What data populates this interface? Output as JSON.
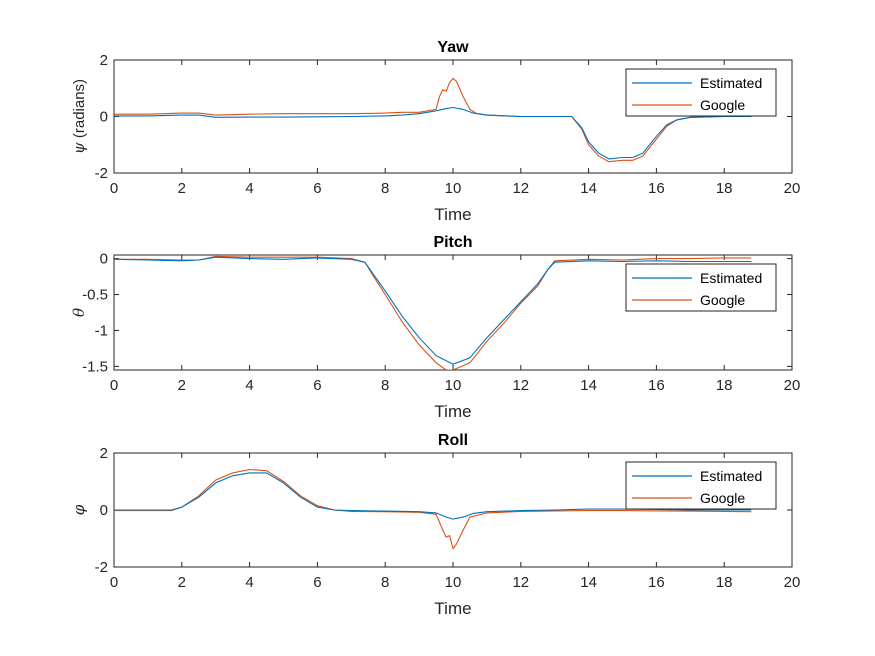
{
  "chart_data": [
    {
      "type": "line",
      "title": "Yaw",
      "xlabel": "Time",
      "ylabel_symbol": "ψ",
      "ylabel_text": " (radians)",
      "xlim": [
        0,
        20
      ],
      "ylim": [
        -2,
        2
      ],
      "xticks": [
        0,
        2,
        4,
        6,
        8,
        10,
        12,
        14,
        16,
        18,
        20
      ],
      "yticks": [
        -2,
        0,
        2
      ],
      "ytick_labels": [
        "-2",
        "0",
        "2"
      ],
      "legend": {
        "position": "top-right",
        "entries": [
          "Estimated",
          "Google"
        ]
      },
      "series": [
        {
          "name": "Estimated",
          "color": "#0072BD",
          "x": [
            0,
            1,
            2,
            2.5,
            3,
            4,
            5,
            6,
            7,
            8,
            8.5,
            9,
            9.5,
            9.8,
            10,
            10.3,
            10.6,
            11,
            12,
            13,
            13.5,
            13.8,
            14,
            14.3,
            14.6,
            15,
            15.3,
            15.6,
            16,
            16.3,
            16.6,
            17,
            18,
            18.8
          ],
          "y": [
            0.02,
            0.02,
            0.05,
            0.05,
            -0.03,
            -0.02,
            -0.02,
            -0.01,
            0.0,
            0.02,
            0.05,
            0.1,
            0.2,
            0.28,
            0.32,
            0.25,
            0.12,
            0.05,
            0.0,
            0.0,
            0.0,
            -0.4,
            -0.9,
            -1.3,
            -1.5,
            -1.45,
            -1.45,
            -1.3,
            -0.7,
            -0.3,
            -0.12,
            -0.03,
            0.0,
            0.0
          ]
        },
        {
          "name": "Google",
          "color": "#D95319",
          "x": [
            0,
            1,
            2,
            2.5,
            3,
            4,
            5,
            6,
            7,
            8,
            8.5,
            9,
            9.5,
            9.6,
            9.7,
            9.8,
            9.9,
            10,
            10.1,
            10.3,
            10.5,
            10.7,
            11,
            12,
            13,
            13.5,
            13.8,
            14,
            14.3,
            14.6,
            15,
            15.3,
            15.6,
            16,
            16.3,
            16.6,
            17,
            18,
            18.8
          ],
          "y": [
            0.08,
            0.08,
            0.12,
            0.12,
            0.05,
            0.08,
            0.1,
            0.1,
            0.1,
            0.12,
            0.15,
            0.15,
            0.25,
            0.7,
            0.95,
            0.9,
            1.2,
            1.35,
            1.25,
            0.7,
            0.25,
            0.1,
            0.05,
            0.0,
            0.0,
            0.0,
            -0.45,
            -1.0,
            -1.4,
            -1.6,
            -1.55,
            -1.55,
            -1.4,
            -0.8,
            -0.35,
            -0.12,
            -0.03,
            0.0,
            0.0
          ]
        }
      ]
    },
    {
      "type": "line",
      "title": "Pitch",
      "xlabel": "Time",
      "ylabel_symbol": "θ",
      "ylabel_text": "",
      "xlim": [
        0,
        20
      ],
      "ylim": [
        -1.55,
        0.05
      ],
      "xticks": [
        0,
        2,
        4,
        6,
        8,
        10,
        12,
        14,
        16,
        18,
        20
      ],
      "yticks": [
        -1.5,
        -1,
        -0.5,
        0
      ],
      "ytick_labels": [
        "-1.5",
        "-1",
        "-0.5",
        "0"
      ],
      "legend": {
        "position": "top-right",
        "entries": [
          "Estimated",
          "Google"
        ]
      },
      "series": [
        {
          "name": "Estimated",
          "color": "#0072BD",
          "x": [
            0,
            1,
            2,
            2.5,
            3,
            4,
            5,
            6,
            7,
            7.4,
            7.7,
            8,
            8.5,
            9,
            9.5,
            10,
            10.5,
            11,
            11.5,
            12,
            12.5,
            12.8,
            13,
            14,
            15,
            16,
            17,
            18,
            18.8
          ],
          "y": [
            -0.01,
            -0.02,
            -0.03,
            -0.02,
            0.02,
            0.0,
            -0.01,
            0.01,
            -0.01,
            -0.05,
            -0.25,
            -0.45,
            -0.8,
            -1.1,
            -1.35,
            -1.47,
            -1.38,
            -1.1,
            -0.85,
            -0.6,
            -0.35,
            -0.15,
            -0.05,
            -0.03,
            -0.04,
            -0.03,
            -0.04,
            -0.04,
            -0.04
          ]
        },
        {
          "name": "Google",
          "color": "#D95319",
          "x": [
            0,
            1,
            2,
            2.5,
            3,
            4,
            5,
            6,
            7,
            7.4,
            7.7,
            8,
            8.5,
            9,
            9.5,
            9.8,
            10,
            10.5,
            11,
            11.5,
            12,
            12.5,
            12.8,
            13,
            14,
            15,
            16,
            17,
            18,
            18.8
          ],
          "y": [
            -0.01,
            -0.01,
            -0.02,
            -0.02,
            0.03,
            0.02,
            0.02,
            0.02,
            0.0,
            -0.05,
            -0.28,
            -0.5,
            -0.88,
            -1.2,
            -1.45,
            -1.55,
            -1.55,
            -1.45,
            -1.15,
            -0.9,
            -0.62,
            -0.38,
            -0.15,
            -0.03,
            -0.01,
            -0.02,
            0.0,
            0.0,
            0.01,
            0.01
          ]
        }
      ]
    },
    {
      "type": "line",
      "title": "Roll",
      "xlabel": "Time",
      "ylabel_symbol": "φ",
      "ylabel_text": "",
      "xlim": [
        0,
        20
      ],
      "ylim": [
        -2,
        2
      ],
      "xticks": [
        0,
        2,
        4,
        6,
        8,
        10,
        12,
        14,
        16,
        18,
        20
      ],
      "yticks": [
        -2,
        0,
        2
      ],
      "ytick_labels": [
        "-2",
        "0",
        "2"
      ],
      "legend": {
        "position": "top-right",
        "entries": [
          "Estimated",
          "Google"
        ]
      },
      "series": [
        {
          "name": "Estimated",
          "color": "#0072BD",
          "x": [
            0,
            1,
            1.7,
            2,
            2.5,
            3,
            3.5,
            4,
            4.5,
            5,
            5.5,
            6,
            6.5,
            7,
            8,
            9,
            9.5,
            9.8,
            10,
            10.3,
            10.6,
            11,
            12,
            13,
            14,
            15,
            16,
            17,
            18,
            18.8
          ],
          "y": [
            0.0,
            0.0,
            0.0,
            0.1,
            0.45,
            0.95,
            1.2,
            1.3,
            1.3,
            0.95,
            0.45,
            0.1,
            0.0,
            -0.02,
            -0.04,
            -0.06,
            -0.1,
            -0.25,
            -0.32,
            -0.25,
            -0.12,
            -0.06,
            -0.02,
            0.0,
            0.03,
            0.03,
            0.02,
            0.0,
            0.0,
            0.0
          ]
        },
        {
          "name": "Google",
          "color": "#D95319",
          "x": [
            0,
            1,
            1.7,
            2,
            2.5,
            3,
            3.5,
            4,
            4.5,
            5,
            5.5,
            6,
            6.5,
            7,
            8,
            9,
            9.5,
            9.7,
            9.8,
            9.9,
            10,
            10.1,
            10.3,
            10.5,
            11,
            12,
            13,
            14,
            15,
            16,
            17,
            18,
            18.8
          ],
          "y": [
            -0.02,
            -0.02,
            -0.02,
            0.1,
            0.5,
            1.05,
            1.3,
            1.42,
            1.38,
            1.0,
            0.5,
            0.15,
            0.0,
            -0.05,
            -0.06,
            -0.08,
            -0.15,
            -0.7,
            -0.95,
            -0.9,
            -1.35,
            -1.2,
            -0.7,
            -0.25,
            -0.1,
            -0.05,
            -0.03,
            -0.02,
            -0.02,
            -0.03,
            -0.04,
            -0.05,
            -0.06
          ]
        }
      ]
    }
  ]
}
